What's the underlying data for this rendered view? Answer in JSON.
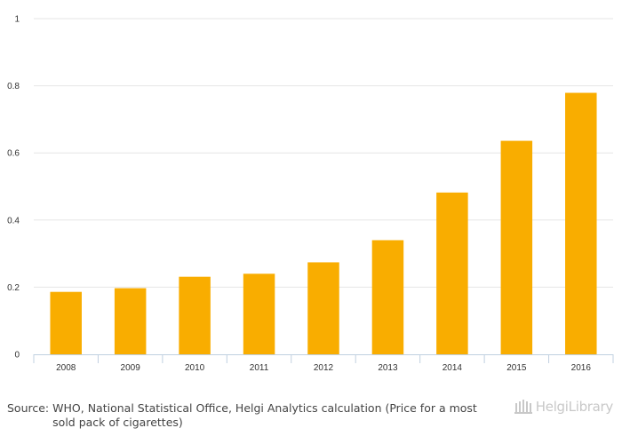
{
  "chart_data": {
    "type": "bar",
    "categories": [
      "2008",
      "2009",
      "2010",
      "2011",
      "2012",
      "2013",
      "2014",
      "2015",
      "2016"
    ],
    "values": [
      0.186,
      0.197,
      0.231,
      0.24,
      0.274,
      0.34,
      0.482,
      0.636,
      0.779
    ],
    "ylim": [
      0,
      1
    ],
    "yticks": [
      "0",
      "0.2",
      "0.4",
      "0.6",
      "0.8",
      "1"
    ],
    "grid": true,
    "bar_color": "#f9ad00",
    "grid_color": "#e6e6e6",
    "axis_color": "#c0d0e0"
  },
  "footer": {
    "source_label": "Source:",
    "source_text": "WHO, National Statistical Office, Helgi Analytics calculation (Price for a most sold pack of cigarettes)"
  },
  "logo": {
    "text": "HelgiLibrary"
  }
}
